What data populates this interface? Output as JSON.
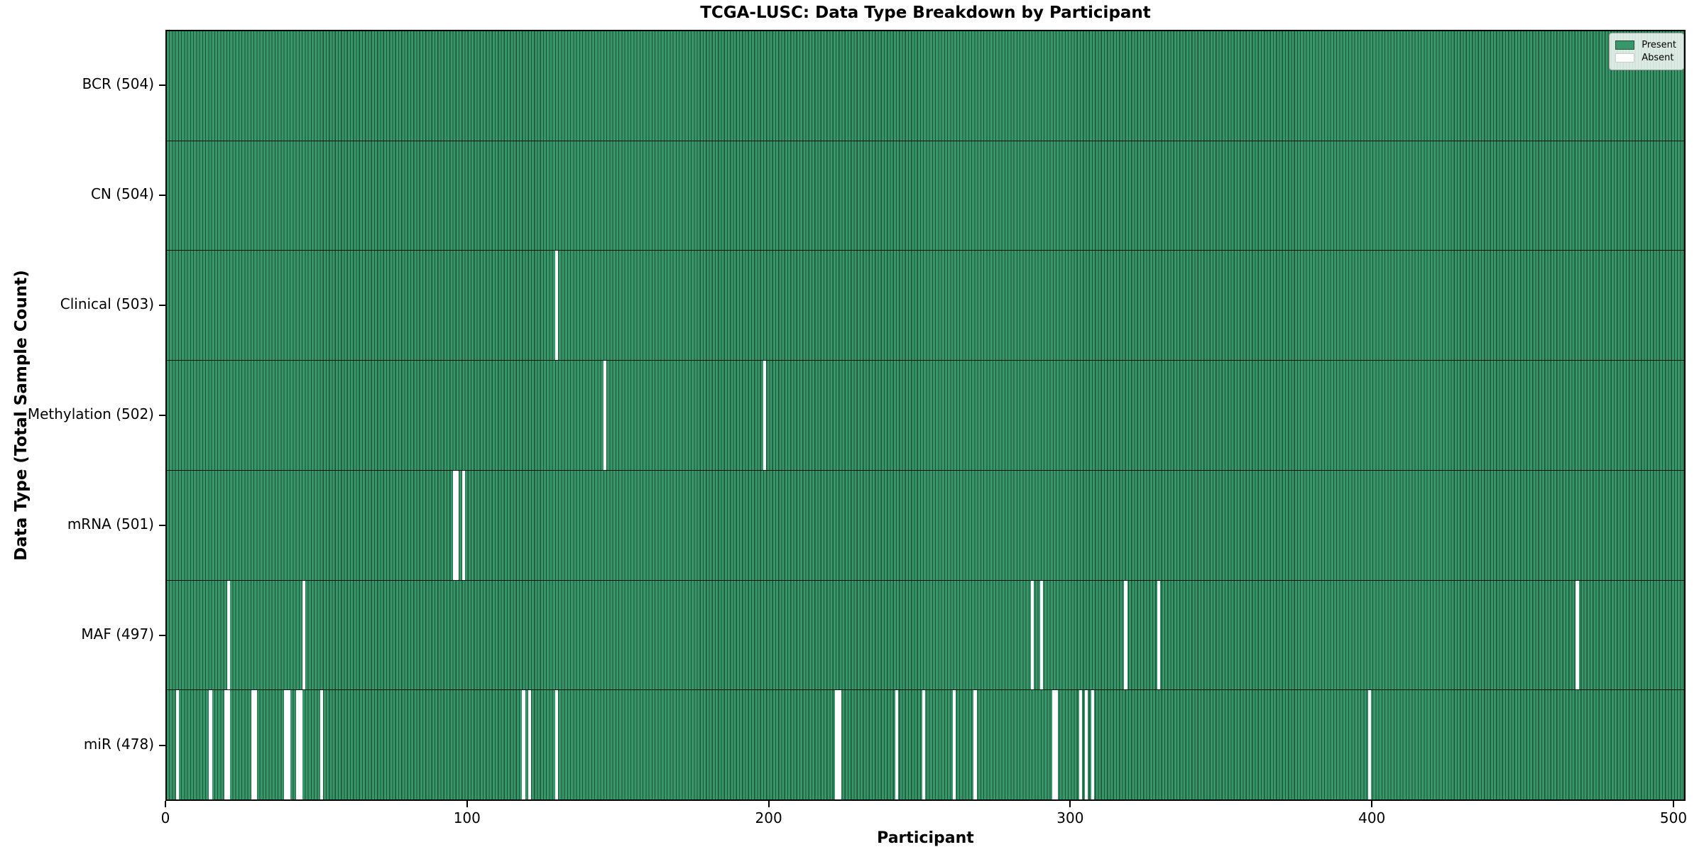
{
  "title": "TCGA-LUSC: Data Type Breakdown by Participant",
  "axes": {
    "xlabel": "Participant",
    "ylabel": "Data Type (Total Sample Count)"
  },
  "legend": {
    "present_label": "Present",
    "absent_label": "Absent"
  },
  "colors": {
    "present_fill": "#37966a",
    "bar_edge": "#1c5434",
    "absent_fill": "#ffffff",
    "row_divider": "#000000"
  },
  "chart_data": {
    "type": "heatmap",
    "title": "TCGA-LUSC: Data Type Breakdown by Participant",
    "xlabel": "Participant",
    "ylabel": "Data Type (Total Sample Count)",
    "legend_entries": [
      "Present",
      "Absent"
    ],
    "legend_position": "upper right",
    "grid": false,
    "n_participants": 504,
    "x_ticks": [
      0,
      100,
      200,
      300,
      400,
      500
    ],
    "x_range": [
      0,
      504
    ],
    "rows": [
      {
        "label": "BCR (504)",
        "data_type": "BCR",
        "present_count": 504,
        "absent_participants": []
      },
      {
        "label": "CN (504)",
        "data_type": "CN",
        "present_count": 504,
        "absent_participants": []
      },
      {
        "label": "Clinical (503)",
        "data_type": "Clinical",
        "present_count": 503,
        "absent_participants": [
          129
        ]
      },
      {
        "label": "Methylation (502)",
        "data_type": "Methylation",
        "present_count": 502,
        "absent_participants": [
          145,
          198
        ]
      },
      {
        "label": "mRNA (501)",
        "data_type": "mRNA",
        "present_count": 501,
        "absent_participants": [
          95,
          96,
          98
        ]
      },
      {
        "label": "MAF (497)",
        "data_type": "MAF",
        "present_count": 497,
        "absent_participants": [
          20,
          45,
          287,
          290,
          318,
          329,
          468
        ]
      },
      {
        "label": "miR (478)",
        "data_type": "miR",
        "present_count": 478,
        "absent_participants": [
          3,
          14,
          19,
          20,
          28,
          29,
          39,
          40,
          43,
          44,
          51,
          118,
          120,
          129,
          222,
          223,
          242,
          251,
          261,
          268,
          294,
          295,
          303,
          305,
          307,
          399
        ]
      }
    ]
  }
}
